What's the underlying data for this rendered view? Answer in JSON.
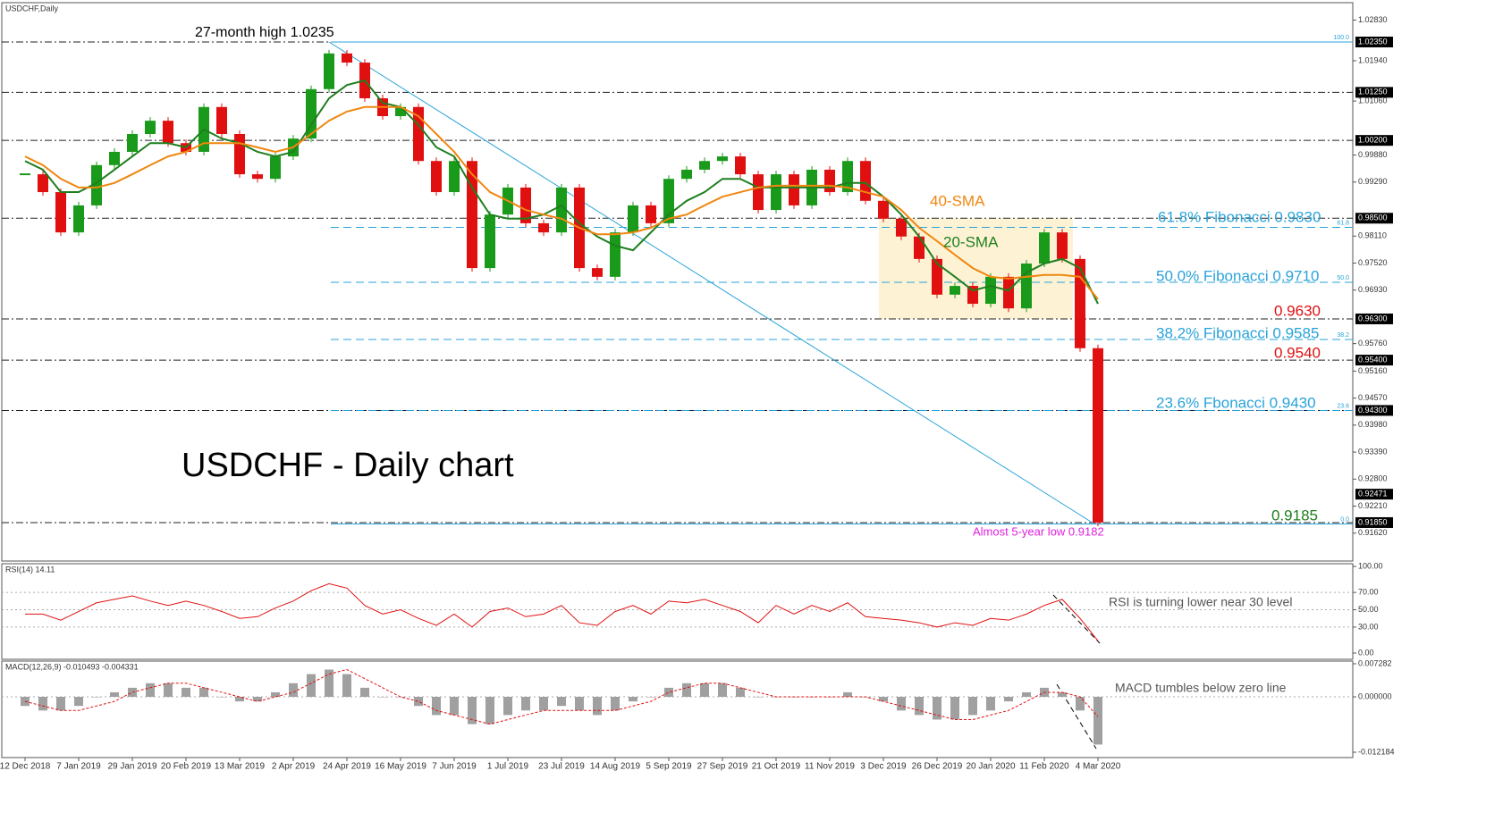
{
  "chart_data": {
    "type": "candlestick",
    "title": "USDCHF,Daily",
    "heading": "USDCHF - Daily chart",
    "categories": [
      "12 Dec 2018",
      null,
      null,
      "7 Jan 2019",
      null,
      null,
      "29 Jan 2019",
      null,
      null,
      "20 Feb 2019",
      null,
      null,
      "13 Mar 2019",
      null,
      null,
      "2 Apr 2019",
      null,
      null,
      "24 Apr 2019",
      null,
      null,
      "16 May 2019",
      null,
      null,
      "7 Jun 2019",
      null,
      null,
      "1 Jul 2019",
      null,
      null,
      "23 Jul 2019",
      null,
      null,
      "14 Aug 2019",
      null,
      null,
      "5 Sep 2019",
      null,
      null,
      "27 Sep 2019",
      null,
      null,
      "21 Oct 2019",
      null,
      null,
      "11 Nov 2019",
      null,
      null,
      "3 Dec 2019",
      null,
      null,
      "26 Dec 2019",
      null,
      null,
      "20 Jan 2020",
      null,
      null,
      "11 Feb 2020",
      null,
      null,
      "4 Mar 2020"
    ],
    "close": [
      0.9946,
      0.9907,
      0.9819,
      0.9878,
      0.9966,
      0.9995,
      1.0034,
      1.0063,
      1.0014,
      0.9995,
      1.0093,
      1.0034,
      0.9946,
      0.9936,
      0.9985,
      1.0024,
      1.0132,
      1.021,
      1.019,
      1.0112,
      1.0073,
      1.0093,
      0.9975,
      0.9907,
      0.9975,
      0.9741,
      0.9858,
      0.9917,
      0.9839,
      0.9819,
      0.9917,
      0.9741,
      0.9722,
      0.9819,
      0.9878,
      0.9839,
      0.9936,
      0.9956,
      0.9975,
      0.9985,
      0.9946,
      0.9868,
      0.9946,
      0.9878,
      0.9956,
      0.9907,
      0.9975,
      0.9888,
      0.9849,
      0.981,
      0.9761,
      0.9683,
      0.9702,
      0.9663,
      0.9722,
      0.9653,
      0.9751,
      0.9819,
      0.9761,
      0.9566,
      0.9185
    ],
    "up_color": "#1a9a1a",
    "down_color": "#e01010",
    "sma": [
      {
        "label": "20-SMA",
        "color": "#1f7f1f",
        "values": [
          0.9975,
          0.9956,
          0.9907,
          0.9907,
          0.9927,
          0.9956,
          0.9985,
          1.0014,
          1.0014,
          1.0005,
          1.0044,
          1.0024,
          1.0014,
          0.9995,
          0.9985,
          0.9995,
          1.0054,
          1.0112,
          1.0141,
          1.0151,
          1.0102,
          1.0093,
          1.0054,
          1.0005,
          0.9985,
          0.9917,
          0.9858,
          0.9849,
          0.9849,
          0.9858,
          0.9878,
          0.9839,
          0.981,
          0.979,
          0.978,
          0.9819,
          0.9858,
          0.9888,
          0.9907,
          0.9936,
          0.9936,
          0.9917,
          0.9917,
          0.9917,
          0.9917,
          0.9917,
          0.9927,
          0.9927,
          0.9897,
          0.9858,
          0.981,
          0.9751,
          0.9722,
          0.9692,
          0.9702,
          0.9692,
          0.9731,
          0.9751,
          0.9761,
          0.9741,
          0.9663
        ]
      },
      {
        "label": "40-SMA",
        "color": "#f0860f",
        "values": [
          0.9985,
          0.9966,
          0.9936,
          0.9917,
          0.9917,
          0.9927,
          0.9946,
          0.9966,
          0.9985,
          0.9995,
          1.0014,
          1.0014,
          1.0014,
          1.0005,
          0.9995,
          1.0005,
          1.0034,
          1.0063,
          1.0083,
          1.0093,
          1.0093,
          1.0093,
          1.0073,
          1.0034,
          0.9995,
          0.9946,
          0.9907,
          0.9888,
          0.9868,
          0.9858,
          0.9849,
          0.9829,
          0.9815,
          0.9815,
          0.9819,
          0.9829,
          0.9849,
          0.9858,
          0.9878,
          0.9897,
          0.9907,
          0.9917,
          0.9921,
          0.9921,
          0.9921,
          0.9921,
          0.9917,
          0.9907,
          0.9897,
          0.9868,
          0.9829,
          0.98,
          0.977,
          0.9741,
          0.9722,
          0.9718,
          0.9722,
          0.9726,
          0.9726,
          0.9722,
          0.9673
        ]
      }
    ],
    "ylim": [
      0.9101,
      1.0317
    ],
    "yticks": [
      {
        "value": 1.0283,
        "label": "1.02830"
      },
      {
        "value": 1.0194,
        "label": "1.01940"
      },
      {
        "value": 1.0106,
        "label": "1.01060"
      },
      {
        "value": 0.9988,
        "label": "0.99880"
      },
      {
        "value": 0.9929,
        "label": "0.99290"
      },
      {
        "value": 0.9811,
        "label": "0.98110"
      },
      {
        "value": 0.9752,
        "label": "0.97520"
      },
      {
        "value": 0.9693,
        "label": "0.96930"
      },
      {
        "value": 0.9576,
        "label": "0.95760"
      },
      {
        "value": 0.9516,
        "label": "0.95160"
      },
      {
        "value": 0.9457,
        "label": "0.94570"
      },
      {
        "value": 0.9398,
        "label": "0.93980"
      },
      {
        "value": 0.9339,
        "label": "0.93390"
      },
      {
        "value": 0.928,
        "label": "0.92800"
      },
      {
        "value": 0.9221,
        "label": "0.92210"
      },
      {
        "value": 0.9162,
        "label": "0.91620"
      }
    ],
    "price_levels": [
      {
        "value": 1.0235,
        "label": "1.02350"
      },
      {
        "value": 1.0125,
        "label": "1.01250"
      },
      {
        "value": 1.002,
        "label": "1.00200"
      },
      {
        "value": 0.985,
        "label": "0.98500"
      },
      {
        "value": 0.963,
        "label": "0.96300"
      },
      {
        "value": 0.954,
        "label": "0.95400"
      },
      {
        "value": 0.943,
        "label": "0.94300"
      },
      {
        "value": 0.9185,
        "label": "0.91850"
      }
    ],
    "current_price": {
      "value": 0.92471,
      "label": "0.92471"
    },
    "fibonacci_color": "#29a3d9",
    "fibonacci": [
      {
        "level": "100.0",
        "price": 1.0235
      },
      {
        "level": "61.8",
        "price": 0.983
      },
      {
        "level": "50.0",
        "price": 0.971
      },
      {
        "level": "38.2",
        "price": 0.9585
      },
      {
        "level": "23.6",
        "price": 0.943
      },
      {
        "level": "0.0",
        "price": 0.9182
      }
    ],
    "annotations": [
      {
        "text": "27-month high 1.0235",
        "color": "#000000"
      },
      {
        "text": "40-SMA",
        "color": "#f0860f"
      },
      {
        "text": "20-SMA",
        "color": "#1f7f1f"
      },
      {
        "text": "61.8% Fibonacci 0.9830",
        "color": "#29a3d9"
      },
      {
        "text": "50.0% Fibonacci 0.9710",
        "color": "#29a3d9"
      },
      {
        "text": "0.9630",
        "color": "#e01010"
      },
      {
        "text": "38.2% Fibonacci 0.9585",
        "color": "#29a3d9"
      },
      {
        "text": "0.9540",
        "color": "#e01010"
      },
      {
        "text": "23.6% Fbonacci 0.9430",
        "color": "#29a3d9"
      },
      {
        "text": "0.9185",
        "color": "#1f7f1f"
      },
      {
        "text": "Almost 5-year low 0.9182",
        "color": "#e020e0"
      }
    ],
    "rsi": {
      "title": "RSI(14) 14.11",
      "color": "#e01010",
      "values": [
        45,
        45,
        38,
        48,
        58,
        62,
        66,
        60,
        55,
        60,
        55,
        48,
        40,
        42,
        52,
        60,
        72,
        80,
        75,
        55,
        45,
        50,
        40,
        32,
        45,
        30,
        48,
        52,
        42,
        45,
        55,
        35,
        32,
        48,
        55,
        45,
        60,
        58,
        62,
        55,
        48,
        35,
        55,
        45,
        55,
        48,
        58,
        42,
        40,
        38,
        35,
        30,
        35,
        32,
        40,
        38,
        45,
        55,
        62,
        40,
        14.11
      ],
      "ylim": [
        -7.2,
        102.1
      ],
      "yticks": [
        {
          "value": 100,
          "label": "100.00"
        },
        {
          "value": 70,
          "label": "70.00"
        },
        {
          "value": 50,
          "label": "50.00"
        },
        {
          "value": 30,
          "label": "30.00"
        },
        {
          "value": 0,
          "label": "0.00"
        }
      ],
      "note": "RSI is turning lower near 30 level"
    },
    "macd": {
      "title": "MACD(12,26,9) -0.010493 -0.004331",
      "histogram_color": "#a0a0a0",
      "signal_color": "#e01010",
      "histogram": [
        -0.002,
        -0.003,
        -0.003,
        -0.002,
        0,
        0.001,
        0.002,
        0.003,
        0.003,
        0.002,
        0.002,
        0,
        -0.001,
        -0.001,
        0.001,
        0.003,
        0.005,
        0.006,
        0.005,
        0.002,
        0,
        0,
        -0.002,
        -0.004,
        -0.004,
        -0.006,
        -0.006,
        -0.004,
        -0.003,
        -0.003,
        -0.002,
        -0.003,
        -0.004,
        -0.003,
        -0.001,
        0,
        0.002,
        0.003,
        0.003,
        0.003,
        0.002,
        0,
        0,
        0,
        0,
        0,
        0.001,
        0,
        -0.001,
        -0.003,
        -0.004,
        -0.005,
        -0.005,
        -0.004,
        -0.003,
        -0.001,
        0.001,
        0.002,
        0.001,
        -0.003,
        -0.010493
      ],
      "signal": [
        -0.001,
        -0.002,
        -0.003,
        -0.003,
        -0.002,
        -0.001,
        0.001,
        0.002,
        0.003,
        0.003,
        0.002,
        0.001,
        0,
        -0.001,
        0,
        0.001,
        0.003,
        0.005,
        0.006,
        0.004,
        0.002,
        0,
        -0.001,
        -0.003,
        -0.004,
        -0.005,
        -0.006,
        -0.005,
        -0.004,
        -0.003,
        -0.003,
        -0.003,
        -0.003,
        -0.003,
        -0.002,
        -0.001,
        0.001,
        0.002,
        0.003,
        0.003,
        0.002,
        0.001,
        0,
        0,
        0,
        0,
        0,
        0,
        -0.001,
        -0.002,
        -0.003,
        -0.004,
        -0.005,
        -0.005,
        -0.004,
        -0.003,
        -0.001,
        0.001,
        0.001,
        0,
        -0.004331
      ],
      "ylim": [
        -0.01316,
        0.00767
      ],
      "yticks": [
        0.007282,
        {
          "value": 0,
          "label": "0.000000"
        },
        -0.012184
      ],
      "note": "MACD tumbles below zero line"
    }
  }
}
